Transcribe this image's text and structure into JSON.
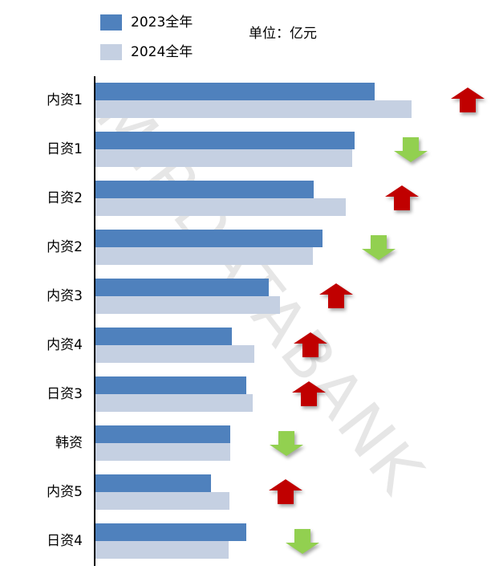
{
  "chart_data": {
    "type": "bar",
    "orientation": "horizontal",
    "unit_note": "单位：亿元",
    "watermark": "MIRDATABANK",
    "categories": [
      "内资1",
      "日资1",
      "日资2",
      "内资2",
      "内资3",
      "内资4",
      "日资3",
      "韩资",
      "内资5",
      "日资4"
    ],
    "series": [
      {
        "name": "2023全年",
        "color": "#4f81bd",
        "values": [
          349,
          324,
          273,
          284,
          217,
          171,
          189,
          169,
          145,
          189
        ]
      },
      {
        "name": "2024全年",
        "color": "#c5d0e2",
        "values": [
          395,
          321,
          313,
          272,
          231,
          199,
          197,
          169,
          168,
          167
        ]
      }
    ],
    "trend": [
      "up",
      "down",
      "up",
      "down",
      "up",
      "up",
      "up",
      "down",
      "up",
      "down"
    ],
    "trend_colors": {
      "up": "#c00000",
      "down": "#92d050"
    },
    "xlim": [
      0,
      395
    ]
  }
}
